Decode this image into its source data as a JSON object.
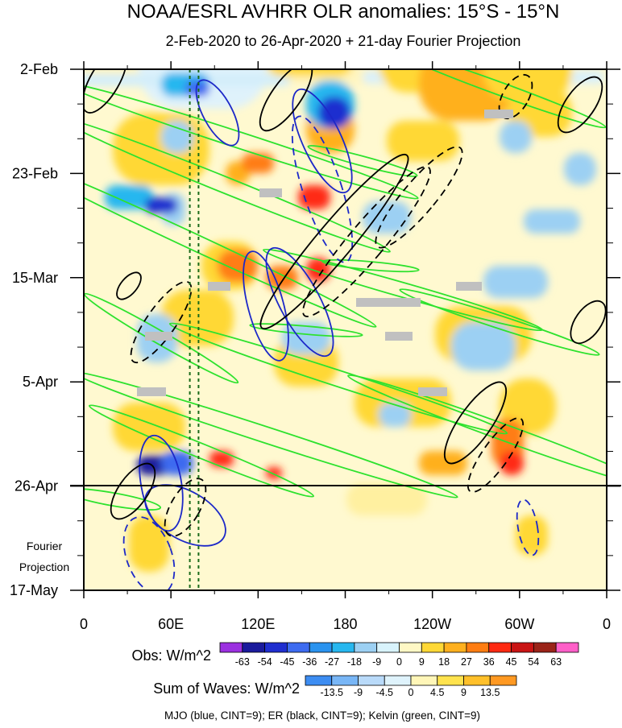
{
  "chart_data": {
    "type": "heatmap",
    "title": "NOAA/ESRL AVHRR OLR anomalies: 15°S - 15°N",
    "subtitle": "2-Feb-2020 to 26-Apr-2020 + 21-day Fourier Projection",
    "x_ticks": [
      "0",
      "60E",
      "120E",
      "180",
      "120W",
      "60W",
      "0"
    ],
    "x_tick_lon": [
      0,
      60,
      120,
      180,
      240,
      300,
      360
    ],
    "y_ticks": [
      "2-Feb",
      "23-Feb",
      "15-Mar",
      "5-Apr",
      "26-Apr",
      "17-May"
    ],
    "y_tick_day": [
      0,
      21,
      42,
      63,
      84,
      105
    ],
    "projection_label_line1": "Fourier",
    "projection_label_line2": "Projection",
    "projection_start_day": 84,
    "obs_legend": {
      "label": "Obs: W/m^2",
      "levels": [
        "-63",
        "-54",
        "-45",
        "-36",
        "-27",
        "-18",
        "-9",
        "0",
        "9",
        "18",
        "27",
        "36",
        "45",
        "54",
        "63"
      ],
      "colors": [
        "#9b30e0",
        "#1a1a9c",
        "#1f2ecf",
        "#3d6bf0",
        "#2a93ef",
        "#27b7ef",
        "#9cd0f3",
        "#d8f3fc",
        "#fff8c5",
        "#ffd836",
        "#ffb01e",
        "#ff7d12",
        "#ff2a12",
        "#c91414",
        "#9a2318",
        "#ff5fc8"
      ]
    },
    "waves_legend": {
      "label": "Sum of Waves: W/m^2",
      "levels": [
        "-13.5",
        "-9",
        "-4.5",
        "0",
        "4.5",
        "9",
        "13.5"
      ],
      "colors": [
        "#3d8df2",
        "#78b6f6",
        "#b9daf9",
        "#dff3fc",
        "#fff6b8",
        "#ffe34e",
        "#ffc02a",
        "#ff9922"
      ]
    },
    "contour_legend": "MJO (blue, CINT=9); ER (black, CINT=9); Kelvin (green, CINT=9)",
    "series": [
      {
        "name": "MJO",
        "color": "#1c28c8"
      },
      {
        "name": "ER",
        "color": "#000000"
      },
      {
        "name": "Kelvin",
        "color": "#2ee22e"
      }
    ],
    "reference_lines_lon": [
      73,
      79
    ]
  }
}
